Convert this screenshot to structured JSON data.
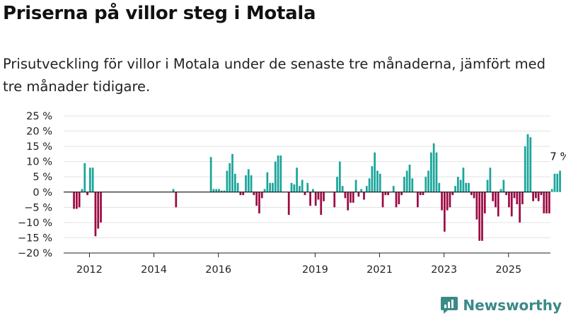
{
  "title": "Priserna på villor steg i Motala",
  "subtitle": "Prisutveckling för villor i Motala under de senaste tre månaderna, jämfört med tre månader tidigare.",
  "brand": "Newsworthy",
  "colors": {
    "positive": "#1aa59b",
    "negative": "#9c0a44",
    "grid": "#e3e3e3",
    "axis": "#222222",
    "text": "#222222"
  },
  "chart_data": {
    "type": "bar",
    "title": "",
    "xlabel": "",
    "ylabel": "",
    "ylim": [
      -20,
      25
    ],
    "yticks": [
      -20,
      -15,
      -10,
      -5,
      0,
      5,
      10,
      15,
      20,
      25
    ],
    "ytick_labels": [
      "−20 %",
      "−15 %",
      "−10 %",
      "−5 %",
      "0 %",
      "5 %",
      "10 %",
      "15 %",
      "20 %",
      "25 %"
    ],
    "xticks": [
      2012,
      2014,
      2016,
      2019,
      2021,
      2023,
      2025
    ],
    "x_unit": "year",
    "x_start": 2011.52,
    "x_step": 0.0833,
    "series": [
      {
        "values": [
          -5.5,
          -5.5,
          -5,
          1,
          9.5,
          -1,
          8,
          8,
          -14.5,
          -12,
          -10,
          null,
          null,
          null,
          null,
          null,
          null,
          null,
          null,
          null,
          null,
          null,
          null,
          null,
          null,
          null,
          null,
          null,
          null,
          null,
          null,
          null,
          null,
          null,
          null,
          null,
          null,
          1,
          -5,
          null,
          null,
          null,
          null,
          null,
          null,
          null,
          null,
          null,
          null,
          null,
          null,
          11.5,
          1,
          1,
          1,
          0.5,
          0.5,
          7,
          9.5,
          12.5,
          6,
          3,
          -1,
          -1,
          5.5,
          7.5,
          5.5,
          -1,
          -4.5,
          -7,
          -2,
          1,
          6.5,
          3,
          3,
          10,
          12,
          12,
          null,
          null,
          -7.5,
          3,
          2.5,
          8,
          2,
          4,
          -1,
          3,
          -4.5,
          1,
          -4.5,
          -2.5,
          -7.5,
          -3,
          null,
          null,
          null,
          -5,
          5,
          10,
          2,
          -2,
          -6,
          -3.5,
          -3.5,
          4,
          -1.5,
          1,
          -2.5,
          2,
          4.5,
          8.5,
          13,
          7,
          6,
          -5,
          -1,
          -1,
          null,
          2,
          -5,
          -4,
          -1,
          5,
          7,
          9,
          4.5,
          null,
          -5,
          -1,
          -1,
          5,
          7,
          13,
          16,
          13,
          3,
          -6,
          -13,
          -6,
          -5,
          -1,
          2,
          5,
          4,
          8,
          3,
          3,
          -1,
          -2,
          -9,
          -16,
          -16,
          -7,
          4,
          8,
          -3,
          -5,
          -8,
          1,
          4,
          -1,
          -5,
          -8,
          -2,
          -4,
          -10,
          -4,
          15,
          19,
          18,
          -3,
          -2,
          -3,
          -1,
          -7,
          -7,
          -7,
          1,
          6,
          6,
          7
        ]
      }
    ],
    "annotation": {
      "text": "7 %"
    }
  }
}
